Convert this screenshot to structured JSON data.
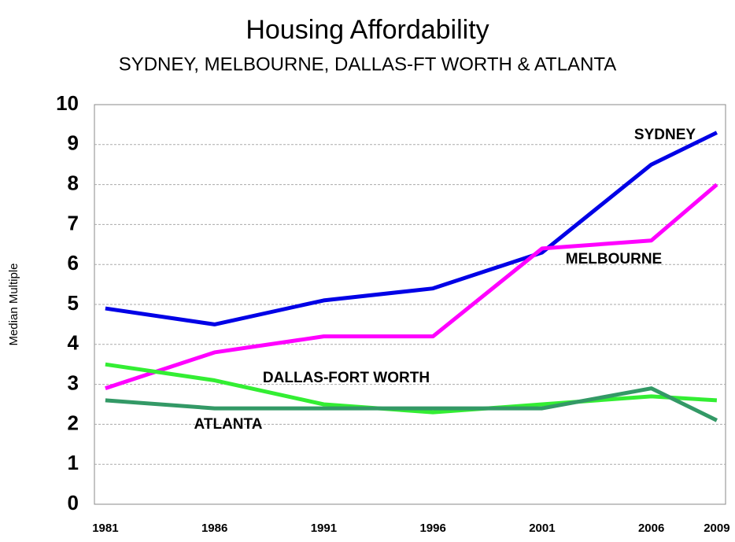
{
  "chart_data": {
    "type": "line",
    "title": "Housing Affordability",
    "subtitle": "SYDNEY, MELBOURNE, DALLAS-FT WORTH & ATLANTA",
    "y_label": "Median Multiple",
    "x": [
      1981,
      1986,
      1991,
      1996,
      2001,
      2006,
      2009
    ],
    "series": [
      {
        "name": "SYDNEY",
        "color": "#0000e6",
        "values": [
          4.9,
          4.5,
          5.1,
          5.4,
          6.3,
          8.5,
          9.3
        ]
      },
      {
        "name": "MELBOURNE",
        "color": "#ff00ff",
        "values": [
          2.9,
          3.8,
          4.2,
          4.2,
          6.4,
          6.6,
          8.0
        ]
      },
      {
        "name": "DALLAS-FORT WORTH",
        "color": "#33ee33",
        "values": [
          3.5,
          3.1,
          2.5,
          2.3,
          2.5,
          2.7,
          2.6
        ]
      },
      {
        "name": "ATLANTA",
        "color": "#339966",
        "values": [
          2.6,
          2.4,
          2.4,
          2.4,
          2.4,
          2.9,
          2.1
        ]
      }
    ],
    "xlim": [
      1980.5,
      2009.4
    ],
    "xticks": [
      1981,
      1986,
      1991,
      1996,
      2001,
      2006,
      2009
    ],
    "ylim": [
      0,
      10
    ],
    "yticks": [
      0,
      1,
      2,
      3,
      4,
      5,
      6,
      7,
      8,
      9,
      10
    ],
    "grid": true
  }
}
